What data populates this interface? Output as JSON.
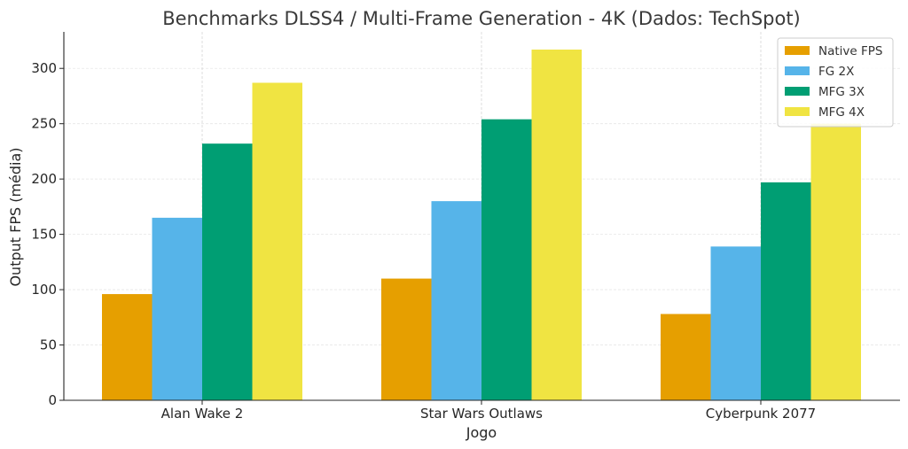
{
  "chart_data": {
    "type": "bar",
    "title": "Benchmarks DLSS4 / Multi-Frame Generation - 4K (Dados: TechSpot)",
    "xlabel": "Jogo",
    "ylabel": "Output FPS (média)",
    "categories": [
      "Alan Wake 2",
      "Star Wars Outlaws",
      "Cyberpunk 2077"
    ],
    "series": [
      {
        "name": "Native FPS",
        "color": "#E69F00",
        "values": [
          96,
          110,
          78
        ]
      },
      {
        "name": "FG 2X",
        "color": "#56B4E9",
        "values": [
          165,
          180,
          139
        ]
      },
      {
        "name": "MFG 3X",
        "color": "#009E73",
        "values": [
          232,
          254,
          197
        ]
      },
      {
        "name": "MFG 4X",
        "color": "#F0E442",
        "values": [
          287,
          317,
          250
        ]
      }
    ],
    "yticks": [
      0,
      50,
      100,
      150,
      200,
      250,
      300
    ],
    "ylim": [
      0,
      333
    ],
    "grid": true,
    "legend_position": "top-right"
  }
}
